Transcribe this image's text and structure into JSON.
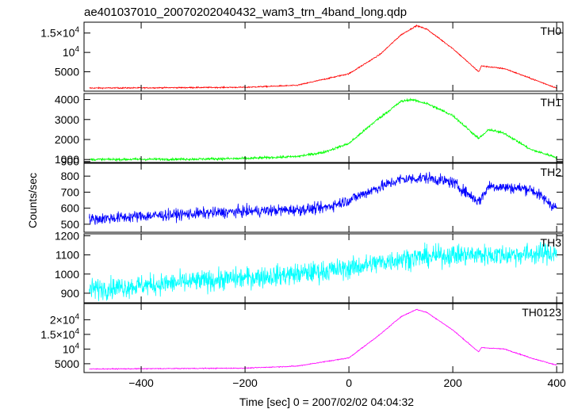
{
  "chart_data": {
    "type": "line",
    "title": "ae401037010_20070202040432_wam3_trn_4band_long.qdp",
    "xlabel": "Time [sec] 0 = 2007/02/02 04:04:32",
    "ylabel": "Counts/sec",
    "xlim": [
      -510,
      412
    ],
    "x_ticks": [
      -400,
      -200,
      0,
      200,
      400
    ],
    "x_tick_labels": [
      "−400",
      "−200",
      "0",
      "200",
      "400"
    ],
    "grid": false,
    "panels": [
      {
        "name": "TH0",
        "color": "#ff0000",
        "ylim": [
          0,
          17800
        ],
        "noise": 150,
        "y_ticks": [
          5000,
          10000,
          15000
        ],
        "y_tick_labels": [
          {
            "base": "5000",
            "exp": ""
          },
          {
            "base": "10",
            "exp": "4"
          },
          {
            "base": "1.5×10",
            "exp": "4"
          }
        ],
        "profile_x": [
          -500,
          -400,
          -200,
          -100,
          0,
          60,
          100,
          130,
          150,
          200,
          250,
          255,
          300,
          350,
          380,
          400
        ],
        "profile_y": [
          800,
          850,
          1000,
          1500,
          4500,
          9500,
          14500,
          16900,
          16000,
          11000,
          5000,
          6500,
          5800,
          3300,
          1800,
          800
        ]
      },
      {
        "name": "TH1",
        "color": "#00ff00",
        "ylim": [
          850,
          4300
        ],
        "noise": 60,
        "y_ticks": [
          900,
          1000,
          2000,
          3000,
          4000
        ],
        "y_tick_labels": [
          {
            "base": "900",
            "exp": ""
          },
          {
            "base": "1000",
            "exp": ""
          },
          {
            "base": "2000",
            "exp": ""
          },
          {
            "base": "3000",
            "exp": ""
          },
          {
            "base": "4000",
            "exp": ""
          }
        ],
        "profile_x": [
          -500,
          -300,
          -200,
          -100,
          -50,
          0,
          50,
          100,
          120,
          150,
          200,
          250,
          270,
          300,
          350,
          400
        ],
        "profile_y": [
          1000,
          1020,
          1050,
          1150,
          1350,
          1800,
          2900,
          3900,
          4000,
          3800,
          3200,
          2050,
          2500,
          2300,
          1500,
          1100
        ]
      },
      {
        "name": "TH2",
        "color": "#0000ff",
        "ylim": [
          450,
          880
        ],
        "noise": 35,
        "y_ticks": [
          500,
          600,
          700,
          800
        ],
        "y_tick_labels": [
          {
            "base": "500",
            "exp": ""
          },
          {
            "base": "600",
            "exp": ""
          },
          {
            "base": "700",
            "exp": ""
          },
          {
            "base": "800",
            "exp": ""
          }
        ],
        "profile_x": [
          -500,
          -400,
          -200,
          -100,
          -50,
          0,
          50,
          100,
          150,
          200,
          250,
          270,
          300,
          350,
          400
        ],
        "profile_y": [
          530,
          550,
          580,
          590,
          600,
          650,
          720,
          780,
          790,
          760,
          640,
          740,
          730,
          720,
          600
        ]
      },
      {
        "name": "TH3",
        "color": "#00ffff",
        "ylim": [
          850,
          1210
        ],
        "noise": 55,
        "y_ticks": [
          900,
          1000,
          1100,
          1200
        ],
        "y_tick_labels": [
          {
            "base": "900",
            "exp": ""
          },
          {
            "base": "1000",
            "exp": ""
          },
          {
            "base": "1100",
            "exp": ""
          },
          {
            "base": "1200",
            "exp": ""
          }
        ],
        "profile_x": [
          -500,
          -300,
          -100,
          0,
          100,
          200,
          300,
          400
        ],
        "profile_y": [
          920,
          960,
          1000,
          1030,
          1080,
          1100,
          1100,
          1110
        ]
      },
      {
        "name": "TH0123",
        "color": "#ff00ff",
        "ylim": [
          2000,
          25500
        ],
        "noise": 150,
        "y_ticks": [
          5000,
          10000,
          15000,
          20000
        ],
        "y_tick_labels": [
          {
            "base": "5000",
            "exp": ""
          },
          {
            "base": "10",
            "exp": "4"
          },
          {
            "base": "1.5×10",
            "exp": "4"
          },
          {
            "base": "2×10",
            "exp": "4"
          }
        ],
        "profile_x": [
          -500,
          -400,
          -200,
          -100,
          0,
          60,
          100,
          130,
          150,
          200,
          250,
          255,
          300,
          350,
          380,
          400
        ],
        "profile_y": [
          3200,
          3300,
          3500,
          4200,
          7000,
          15000,
          21000,
          23500,
          22500,
          16500,
          9000,
          10500,
          10000,
          7000,
          5500,
          4500
        ]
      }
    ]
  }
}
